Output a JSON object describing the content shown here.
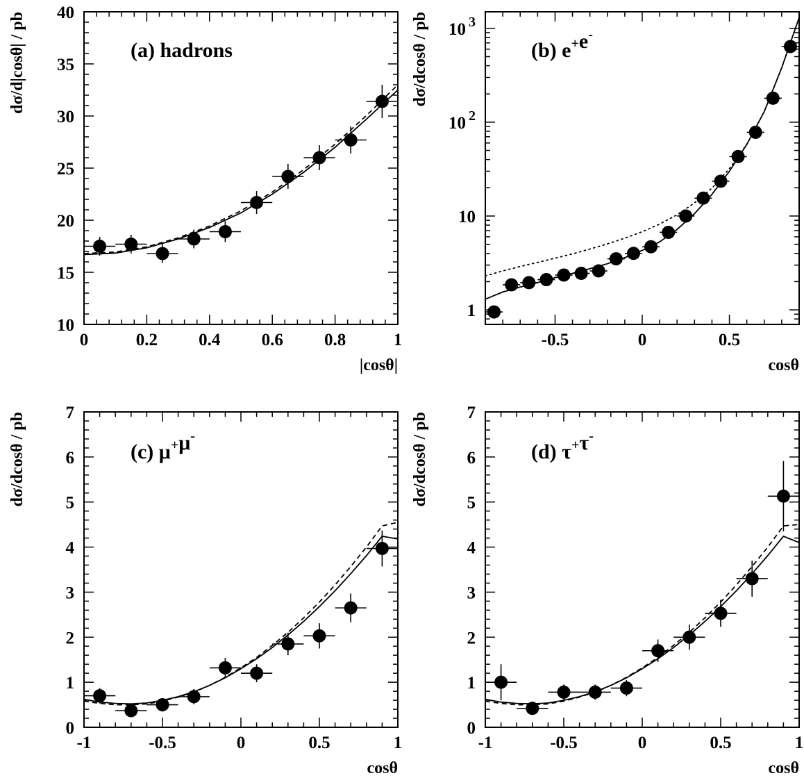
{
  "chart_data": [
    {
      "id": "a",
      "type": "scatter",
      "label": "(a) hadrons",
      "xlabel": "|cosθ|",
      "ylabel": "dσ/d|cosθ| / pb",
      "xlim": [
        0,
        1
      ],
      "ylim": [
        10,
        40
      ],
      "yscale": "linear",
      "xticks": [
        0,
        0.2,
        0.4,
        0.6,
        0.8,
        1
      ],
      "xtick_labels": [
        "0",
        "0.2",
        "0.4",
        "0.6",
        "0.8",
        "1"
      ],
      "yticks": [
        10,
        15,
        20,
        25,
        30,
        35,
        40
      ],
      "ytick_labels": [
        "10",
        "15",
        "20",
        "25",
        "30",
        "35",
        "40"
      ],
      "points": [
        {
          "x": 0.05,
          "y": 17.5,
          "xerr": 0.05,
          "yerr": 0.9
        },
        {
          "x": 0.15,
          "y": 17.7,
          "xerr": 0.05,
          "yerr": 0.9
        },
        {
          "x": 0.25,
          "y": 16.8,
          "xerr": 0.05,
          "yerr": 0.9
        },
        {
          "x": 0.35,
          "y": 18.2,
          "xerr": 0.05,
          "yerr": 0.9
        },
        {
          "x": 0.45,
          "y": 18.9,
          "xerr": 0.05,
          "yerr": 1.0
        },
        {
          "x": 0.55,
          "y": 21.7,
          "xerr": 0.05,
          "yerr": 1.1
        },
        {
          "x": 0.65,
          "y": 24.2,
          "xerr": 0.05,
          "yerr": 1.2
        },
        {
          "x": 0.75,
          "y": 26.0,
          "xerr": 0.05,
          "yerr": 1.2
        },
        {
          "x": 0.85,
          "y": 27.7,
          "xerr": 0.05,
          "yerr": 1.3
        },
        {
          "x": 0.95,
          "y": 31.4,
          "xerr": 0.05,
          "yerr": 1.6
        }
      ],
      "curves": [
        {
          "style": "solid",
          "x": [
            0,
            0.1,
            0.2,
            0.3,
            0.4,
            0.5,
            0.6,
            0.7,
            0.8,
            0.9,
            1.0
          ],
          "y": [
            16.7,
            16.85,
            17.35,
            18.2,
            19.3,
            20.7,
            22.5,
            24.6,
            27.0,
            29.7,
            32.5
          ]
        },
        {
          "style": "dashed",
          "x": [
            0,
            0.1,
            0.2,
            0.3,
            0.4,
            0.5,
            0.6,
            0.7,
            0.8,
            0.9,
            1.0
          ],
          "y": [
            16.8,
            16.95,
            17.45,
            18.3,
            19.45,
            20.9,
            22.7,
            24.85,
            27.3,
            30.05,
            33.0
          ]
        }
      ]
    },
    {
      "id": "b",
      "type": "scatter",
      "label": "(b) e⁺e⁻",
      "xlabel": "cosθ",
      "ylabel": "dσ/dcosθ / pb",
      "xlim": [
        -0.9,
        0.9
      ],
      "ylim": [
        0.7,
        1500
      ],
      "yscale": "log",
      "xticks": [
        -0.5,
        0,
        0.5
      ],
      "xtick_labels": [
        "-0.5",
        "0",
        "0.5"
      ],
      "yticks": [
        1,
        10,
        100,
        1000
      ],
      "ytick_labels": [
        "1",
        "10",
        "10²",
        "10³"
      ],
      "points": [
        {
          "x": -0.85,
          "y": 0.95,
          "xerr": 0.05,
          "yerr": 0.1
        },
        {
          "x": -0.75,
          "y": 1.85,
          "xerr": 0.05,
          "yerr": 0.15
        },
        {
          "x": -0.65,
          "y": 1.95,
          "xerr": 0.05,
          "yerr": 0.15
        },
        {
          "x": -0.55,
          "y": 2.1,
          "xerr": 0.05,
          "yerr": 0.15
        },
        {
          "x": -0.45,
          "y": 2.35,
          "xerr": 0.05,
          "yerr": 0.15
        },
        {
          "x": -0.35,
          "y": 2.45,
          "xerr": 0.05,
          "yerr": 0.15
        },
        {
          "x": -0.25,
          "y": 2.6,
          "xerr": 0.05,
          "yerr": 0.15
        },
        {
          "x": -0.15,
          "y": 3.5,
          "xerr": 0.05,
          "yerr": 0.2
        },
        {
          "x": -0.05,
          "y": 4.0,
          "xerr": 0.05,
          "yerr": 0.2
        },
        {
          "x": 0.05,
          "y": 4.7,
          "xerr": 0.05,
          "yerr": 0.25
        },
        {
          "x": 0.15,
          "y": 6.7,
          "xerr": 0.05,
          "yerr": 0.3
        },
        {
          "x": 0.25,
          "y": 10.0,
          "xerr": 0.05,
          "yerr": 0.5
        },
        {
          "x": 0.35,
          "y": 15.5,
          "xerr": 0.05,
          "yerr": 0.7
        },
        {
          "x": 0.45,
          "y": 23.5,
          "xerr": 0.05,
          "yerr": 1.0
        },
        {
          "x": 0.55,
          "y": 43.0,
          "xerr": 0.05,
          "yerr": 1.8
        },
        {
          "x": 0.65,
          "y": 78.0,
          "xerr": 0.05,
          "yerr": 3.0
        },
        {
          "x": 0.75,
          "y": 180.0,
          "xerr": 0.05,
          "yerr": 6.0
        },
        {
          "x": 0.85,
          "y": 640.0,
          "xerr": 0.05,
          "yerr": 15.0
        }
      ],
      "curves": [
        {
          "style": "solid",
          "x": [
            -0.9,
            -0.8,
            -0.7,
            -0.6,
            -0.5,
            -0.4,
            -0.3,
            -0.2,
            -0.1,
            0.0,
            0.1,
            0.2,
            0.3,
            0.4,
            0.5,
            0.6,
            0.7,
            0.8,
            0.85,
            0.9
          ],
          "y": [
            1.3,
            1.55,
            1.75,
            1.95,
            2.2,
            2.45,
            2.75,
            3.1,
            3.6,
            4.3,
            5.3,
            7.2,
            10.6,
            17.0,
            30.0,
            58.0,
            130.0,
            380.0,
            700.0,
            1300.0
          ]
        },
        {
          "style": "dotted",
          "x": [
            -0.9,
            -0.8,
            -0.7,
            -0.6,
            -0.5,
            -0.4,
            -0.3,
            -0.2,
            -0.1,
            0.0,
            0.1,
            0.2,
            0.3,
            0.4,
            0.5,
            0.6,
            0.7,
            0.8,
            0.85,
            0.9
          ],
          "y": [
            2.3,
            2.6,
            2.9,
            3.2,
            3.55,
            3.95,
            4.45,
            5.05,
            5.8,
            6.8,
            8.2,
            10.3,
            13.8,
            19.8,
            32.0,
            58.0,
            130.0,
            380.0,
            700.0,
            1300.0
          ]
        }
      ]
    },
    {
      "id": "c",
      "type": "scatter",
      "label": "(c) μ⁺μ⁻",
      "xlabel": "cosθ",
      "ylabel": "dσ/dcosθ / pb",
      "xlim": [
        -1,
        1
      ],
      "ylim": [
        0,
        7
      ],
      "yscale": "linear",
      "xticks": [
        -1,
        -0.5,
        0,
        0.5,
        1
      ],
      "xtick_labels": [
        "-1",
        "-0.5",
        "0",
        "0.5",
        "1"
      ],
      "yticks": [
        0,
        1,
        2,
        3,
        4,
        5,
        6,
        7
      ],
      "ytick_labels": [
        "0",
        "1",
        "2",
        "3",
        "4",
        "5",
        "6",
        "7"
      ],
      "points": [
        {
          "x": -0.9,
          "y": 0.7,
          "xerr": 0.1,
          "yerr": 0.17
        },
        {
          "x": -0.7,
          "y": 0.37,
          "xerr": 0.1,
          "yerr": 0.12
        },
        {
          "x": -0.5,
          "y": 0.5,
          "xerr": 0.1,
          "yerr": 0.15
        },
        {
          "x": -0.3,
          "y": 0.68,
          "xerr": 0.1,
          "yerr": 0.17
        },
        {
          "x": -0.1,
          "y": 1.32,
          "xerr": 0.1,
          "yerr": 0.22
        },
        {
          "x": 0.1,
          "y": 1.2,
          "xerr": 0.1,
          "yerr": 0.2
        },
        {
          "x": 0.3,
          "y": 1.85,
          "xerr": 0.1,
          "yerr": 0.25
        },
        {
          "x": 0.5,
          "y": 2.03,
          "xerr": 0.1,
          "yerr": 0.28
        },
        {
          "x": 0.7,
          "y": 2.65,
          "xerr": 0.1,
          "yerr": 0.32
        },
        {
          "x": 0.9,
          "y": 3.97,
          "xerr": 0.1,
          "yerr": 0.4
        }
      ],
      "curves": [
        {
          "style": "solid",
          "x": [
            -1.0,
            -0.9,
            -0.8,
            -0.7,
            -0.6,
            -0.5,
            -0.4,
            -0.3,
            -0.2,
            -0.1,
            0.0,
            0.1,
            0.2,
            0.3,
            0.4,
            0.5,
            0.6,
            0.7,
            0.8,
            0.9,
            1.0
          ],
          "y": [
            0.62,
            0.56,
            0.53,
            0.52,
            0.54,
            0.6,
            0.68,
            0.79,
            0.93,
            1.1,
            1.3,
            1.52,
            1.77,
            2.05,
            2.35,
            2.68,
            3.03,
            3.41,
            3.81,
            4.24,
            4.18
          ]
        },
        {
          "style": "dashed",
          "x": [
            -1.0,
            -0.9,
            -0.8,
            -0.7,
            -0.6,
            -0.5,
            -0.4,
            -0.3,
            -0.2,
            -0.1,
            0.0,
            0.1,
            0.2,
            0.3,
            0.4,
            0.5,
            0.6,
            0.7,
            0.8,
            0.9,
            1.0
          ],
          "y": [
            0.58,
            0.53,
            0.5,
            0.5,
            0.52,
            0.58,
            0.67,
            0.78,
            0.93,
            1.11,
            1.32,
            1.55,
            1.82,
            2.11,
            2.43,
            2.78,
            3.16,
            3.57,
            4.0,
            4.47,
            4.55
          ]
        }
      ]
    },
    {
      "id": "d",
      "type": "scatter",
      "label": "(d) τ⁺τ⁻",
      "xlabel": "cosθ",
      "ylabel": "dσ/dcosθ / pb",
      "xlim": [
        -1,
        1
      ],
      "ylim": [
        0,
        7
      ],
      "yscale": "linear",
      "xticks": [
        -1,
        -0.5,
        0,
        0.5,
        1
      ],
      "xtick_labels": [
        "-1",
        "-0.5",
        "0",
        "0.5",
        "1"
      ],
      "yticks": [
        0,
        1,
        2,
        3,
        4,
        5,
        6,
        7
      ],
      "ytick_labels": [
        "0",
        "1",
        "2",
        "3",
        "4",
        "5",
        "6",
        "7"
      ],
      "points": [
        {
          "x": -0.9,
          "y": 1.0,
          "xerr": 0.1,
          "yerr": 0.4
        },
        {
          "x": -0.7,
          "y": 0.42,
          "xerr": 0.1,
          "yerr": 0.12
        },
        {
          "x": -0.5,
          "y": 0.78,
          "xerr": 0.1,
          "yerr": 0.17
        },
        {
          "x": -0.3,
          "y": 0.78,
          "xerr": 0.1,
          "yerr": 0.17
        },
        {
          "x": -0.1,
          "y": 0.87,
          "xerr": 0.1,
          "yerr": 0.18
        },
        {
          "x": 0.1,
          "y": 1.7,
          "xerr": 0.1,
          "yerr": 0.25
        },
        {
          "x": 0.3,
          "y": 2.0,
          "xerr": 0.1,
          "yerr": 0.28
        },
        {
          "x": 0.5,
          "y": 2.53,
          "xerr": 0.1,
          "yerr": 0.3
        },
        {
          "x": 0.7,
          "y": 3.3,
          "xerr": 0.1,
          "yerr": 0.4
        },
        {
          "x": 0.9,
          "y": 5.13,
          "xerr": 0.1,
          "yerr": 0.78
        }
      ],
      "curves": [
        {
          "style": "solid",
          "x": [
            -1.0,
            -0.9,
            -0.8,
            -0.7,
            -0.6,
            -0.5,
            -0.4,
            -0.3,
            -0.2,
            -0.1,
            0.0,
            0.1,
            0.2,
            0.3,
            0.4,
            0.5,
            0.6,
            0.7,
            0.8,
            0.9,
            1.0
          ],
          "y": [
            0.62,
            0.56,
            0.53,
            0.52,
            0.54,
            0.6,
            0.68,
            0.79,
            0.93,
            1.1,
            1.3,
            1.52,
            1.77,
            2.05,
            2.35,
            2.68,
            3.03,
            3.41,
            3.81,
            4.24,
            4.1
          ]
        },
        {
          "style": "dashed",
          "x": [
            -1.0,
            -0.9,
            -0.8,
            -0.7,
            -0.6,
            -0.5,
            -0.4,
            -0.3,
            -0.2,
            -0.1,
            0.0,
            0.1,
            0.2,
            0.3,
            0.4,
            0.5,
            0.6,
            0.7,
            0.8,
            0.9,
            1.0
          ],
          "y": [
            0.58,
            0.53,
            0.5,
            0.5,
            0.52,
            0.58,
            0.67,
            0.78,
            0.93,
            1.11,
            1.32,
            1.55,
            1.82,
            2.11,
            2.43,
            2.78,
            3.16,
            3.57,
            4.0,
            4.47,
            4.5
          ]
        }
      ]
    }
  ]
}
